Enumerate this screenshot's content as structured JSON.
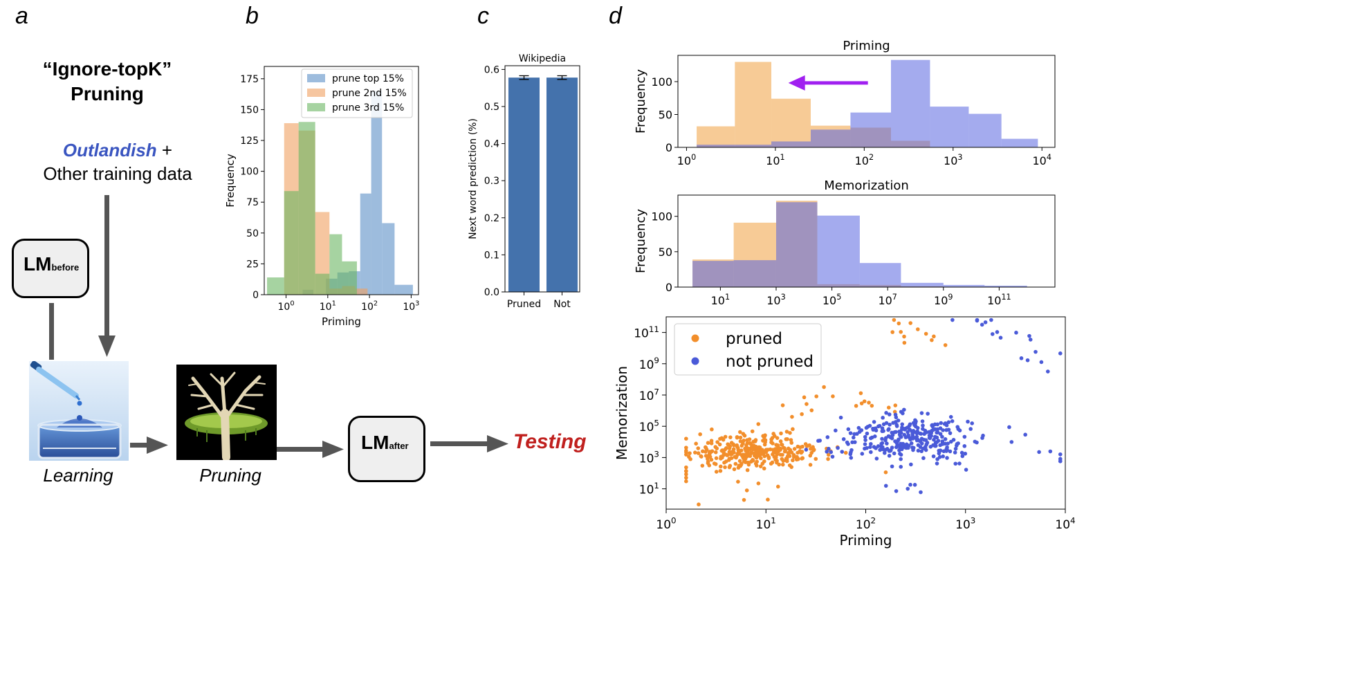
{
  "panels": {
    "a": "a",
    "b": "b",
    "c": "c",
    "d": "d"
  },
  "flow": {
    "title_line1": "“Ignore-topK”",
    "title_line2": "Pruning",
    "outlandish": "Outlandish",
    "plus": " +",
    "other_data": "Other training data",
    "lm_before_main": "LM",
    "lm_before_sub": "before",
    "lm_after_main": "LM",
    "lm_after_sub": "after",
    "learning": "Learning",
    "pruning": "Pruning",
    "testing": "Testing",
    "colors": {
      "outlandish": "#3a55c0",
      "testing": "#c0201e",
      "arrow": "#555555"
    }
  },
  "chart_data": [
    {
      "id": "b",
      "type": "histogram",
      "xlabel": "Priming",
      "ylabel": "Frequency",
      "xscale": "log",
      "xlim": [
        0.3,
        1500
      ],
      "ylim": [
        0,
        185
      ],
      "yticks": [
        0,
        25,
        50,
        75,
        100,
        125,
        150,
        175
      ],
      "xticks": [
        {
          "v": 1,
          "label": "10^0"
        },
        {
          "v": 10,
          "label": "10^1"
        },
        {
          "v": 100,
          "label": "10^2"
        },
        {
          "v": 1000,
          "label": "10^3"
        }
      ],
      "legend": "top-right",
      "series": [
        {
          "name": "prune top 15%",
          "color": "#5b8fc7",
          "bins": [
            [
              0.9,
              1.5,
              0
            ],
            [
              1.5,
              2.5,
              0
            ],
            [
              2.5,
              4.5,
              4
            ],
            [
              4.5,
              9,
              0
            ],
            [
              9,
              17,
              13
            ],
            [
              17,
              32,
              18
            ],
            [
              32,
              60,
              19
            ],
            [
              60,
              110,
              82
            ],
            [
              110,
              200,
              165
            ],
            [
              200,
              400,
              58
            ],
            [
              400,
              1100,
              8
            ]
          ]
        },
        {
          "name": "prune 2nd 15%",
          "color": "#f0a060",
          "bins": [
            [
              0.9,
              2,
              139
            ],
            [
              2,
              5,
              133
            ],
            [
              5,
              11,
              67
            ],
            [
              11,
              22,
              5
            ],
            [
              22,
              45,
              7
            ],
            [
              45,
              90,
              5
            ]
          ]
        },
        {
          "name": "prune 3rd 15%",
          "color": "#6ab562",
          "bins": [
            [
              0.35,
              0.9,
              14
            ],
            [
              0.9,
              2,
              84
            ],
            [
              2,
              5,
              140
            ],
            [
              5,
              11,
              17
            ],
            [
              11,
              22,
              49
            ],
            [
              22,
              50,
              27
            ]
          ]
        }
      ]
    },
    {
      "id": "c",
      "type": "bar",
      "title": "Wikipedia",
      "ylabel": "Next word prediction (%)",
      "categories": [
        "Pruned",
        "Not"
      ],
      "values": [
        0.578,
        0.578
      ],
      "error": [
        0.005,
        0.005
      ],
      "ylim": [
        0,
        0.61
      ],
      "yticks": [
        0.0,
        0.1,
        0.2,
        0.3,
        0.4,
        0.5,
        0.6
      ],
      "color": "#4472ac"
    },
    {
      "id": "d1",
      "type": "histogram",
      "title": "Priming",
      "ylabel": "Frequency",
      "xscale": "log",
      "xlim": [
        0.8,
        14000
      ],
      "ylim": [
        0,
        140
      ],
      "yticks": [
        0,
        50,
        100
      ],
      "xticks": [
        {
          "v": 1,
          "label": "10^0"
        },
        {
          "v": 10,
          "label": "10^1"
        },
        {
          "v": 100,
          "label": "10^2"
        },
        {
          "v": 1000,
          "label": "10^3"
        },
        {
          "v": 10000,
          "label": "10^4"
        }
      ],
      "series": [
        {
          "name": "pruned",
          "color": "#f0a040",
          "bins": [
            [
              1.3,
              3.5,
              32
            ],
            [
              3.5,
              9,
              130
            ],
            [
              9,
              25,
              74
            ],
            [
              25,
              70,
              33
            ],
            [
              70,
              200,
              30
            ],
            [
              200,
              550,
              10
            ],
            [
              550,
              1500,
              0
            ],
            [
              1500,
              3500,
              0
            ],
            [
              3500,
              9000,
              0
            ]
          ]
        },
        {
          "name": "not pruned",
          "color": "#5a66e0",
          "bins": [
            [
              1.3,
              3.5,
              4
            ],
            [
              3.5,
              9,
              4
            ],
            [
              9,
              25,
              9
            ],
            [
              25,
              70,
              27
            ],
            [
              70,
              200,
              53
            ],
            [
              200,
              550,
              133
            ],
            [
              550,
              1500,
              62
            ],
            [
              1500,
              3500,
              51
            ],
            [
              3500,
              9000,
              13
            ]
          ]
        }
      ],
      "annotation": {
        "type": "arrow",
        "color": "#a020f0"
      }
    },
    {
      "id": "d2",
      "type": "histogram",
      "title": "Memorization",
      "ylabel": "Frequency",
      "xscale": "log",
      "xlim": [
        0.3,
        10000000000000.0
      ],
      "ylim": [
        0,
        130
      ],
      "yticks": [
        0,
        50,
        100
      ],
      "xticks": [
        {
          "v": 10,
          "label": "10^1"
        },
        {
          "v": 1000,
          "label": "10^3"
        },
        {
          "v": 100000,
          "label": "10^5"
        },
        {
          "v": 10000000,
          "label": "10^7"
        },
        {
          "v": 1000000000,
          "label": "10^9"
        },
        {
          "v": 100000000000,
          "label": "10^11"
        }
      ],
      "series": [
        {
          "name": "pruned",
          "color": "#f0a040",
          "bins": [
            [
              1,
              30,
              39
            ],
            [
              30,
              1000,
              91
            ],
            [
              1000,
              30000,
              122
            ],
            [
              30000,
              1000000,
              4
            ],
            [
              1000000,
              30000000,
              3
            ],
            [
              30000000,
              1000000000.0,
              1
            ],
            [
              1000000000.0,
              30000000000.0,
              0
            ],
            [
              30000000000.0,
              1000000000000.0,
              0
            ]
          ]
        },
        {
          "name": "not pruned",
          "color": "#5a66e0",
          "bins": [
            [
              1,
              30,
              37
            ],
            [
              30,
              1000,
              38
            ],
            [
              1000,
              30000,
              120
            ],
            [
              30000,
              1000000,
              101
            ],
            [
              1000000,
              30000000,
              34
            ],
            [
              30000000,
              1000000000.0,
              6
            ],
            [
              1000000000.0,
              30000000000.0,
              3
            ],
            [
              30000000000.0,
              1000000000000.0,
              2
            ]
          ]
        }
      ]
    },
    {
      "id": "d3",
      "type": "scatter",
      "xlabel": "Priming",
      "ylabel": "Memorization",
      "xscale": "log",
      "yscale": "log",
      "xlim": [
        1,
        10000
      ],
      "ylim": [
        0.5,
        1000000000000.0
      ],
      "xticks": [
        {
          "v": 1,
          "label": "10^0"
        },
        {
          "v": 10,
          "label": "10^1"
        },
        {
          "v": 100,
          "label": "10^2"
        },
        {
          "v": 1000,
          "label": "10^3"
        },
        {
          "v": 10000,
          "label": "10^4"
        }
      ],
      "yticks": [
        {
          "v": 10,
          "label": "10^1"
        },
        {
          "v": 1000,
          "label": "10^3"
        },
        {
          "v": 100000,
          "label": "10^5"
        },
        {
          "v": 10000000,
          "label": "10^7"
        },
        {
          "v": 1000000000,
          "label": "10^9"
        },
        {
          "v": 100000000000,
          "label": "10^11"
        }
      ],
      "legend": "top-left",
      "series": [
        {
          "name": "pruned",
          "color": "#f28e2b",
          "center": [
            0.9,
            3.4
          ],
          "spread": [
            0.35,
            0.55
          ],
          "count": 330,
          "extra": [
            [
              0.2,
              0.8,
              6
            ],
            [
              1.3,
              6.5,
              2.3
            ],
            [
              2.1,
              6.0,
              1.2
            ],
            [
              2.5,
              11.5,
              1
            ],
            [
              2.55,
              10.6,
              0.9
            ],
            [
              1.75,
              7.2,
              1.5
            ],
            [
              1.0,
              1.0,
              1.8
            ]
          ]
        },
        {
          "name": "not pruned",
          "color": "#4a5ad8",
          "center": [
            2.45,
            4.2
          ],
          "spread": [
            0.35,
            0.7
          ],
          "count": 300,
          "extra": [
            [
              3.1,
              11.7,
              0.8
            ],
            [
              3.55,
              10.8,
              1
            ],
            [
              2.35,
              0.9,
              1.1
            ],
            [
              3.7,
              9.2,
              1.5
            ],
            [
              3.9,
              3.1,
              1
            ]
          ]
        }
      ]
    }
  ]
}
